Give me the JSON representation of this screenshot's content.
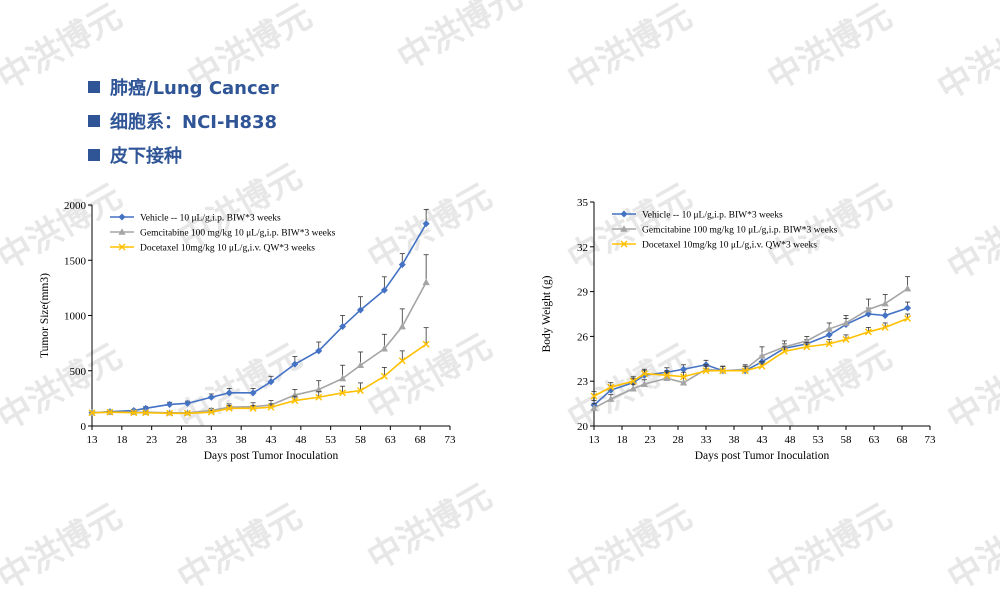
{
  "watermark": "中洪博元",
  "bullets": [
    "肺癌/Lung Cancer",
    "细胞系：NCI-H838",
    "皮下接种"
  ],
  "colors": {
    "vehicle": "#4472C4",
    "gemcitabine": "#A5A5A5",
    "docetaxel": "#FFC000",
    "bullet": "#2F5597"
  },
  "legend": {
    "vehicle": "Vehicle -- 10 μL/g,i.p. BIW*3 weeks",
    "gemcitabine": "Gemcitabine 100 mg/kg 10 μL/g,i.p. BIW*3 weeks",
    "docetaxel": "Docetaxel 10mg/kg 10 μL/g,i.v. QW*3 weeks"
  },
  "chart_data": [
    {
      "type": "line",
      "xlabel": "Days post Tumor Inoculation",
      "ylabel": "Tumor Size(mm3)",
      "xlim": [
        13,
        73
      ],
      "ylim": [
        0,
        2000
      ],
      "xticks": [
        13,
        18,
        23,
        28,
        33,
        38,
        43,
        48,
        53,
        58,
        63,
        68,
        73
      ],
      "yticks": [
        0,
        500,
        1000,
        1500,
        2000
      ],
      "legend_position": "top-left",
      "series": [
        {
          "key": "vehicle",
          "marker": "diamond",
          "x": [
            13,
            16,
            20,
            22,
            26,
            29,
            33,
            36,
            40,
            43,
            47,
            51,
            55,
            58,
            62,
            65,
            69
          ],
          "y": [
            120,
            130,
            140,
            160,
            195,
            205,
            260,
            300,
            300,
            400,
            560,
            680,
            900,
            1050,
            1230,
            1460,
            1830
          ],
          "err": [
            10,
            10,
            12,
            15,
            20,
            20,
            30,
            40,
            40,
            50,
            70,
            80,
            100,
            120,
            120,
            100,
            130
          ]
        },
        {
          "key": "gemcitabine",
          "marker": "triangle",
          "x": [
            13,
            16,
            20,
            22,
            26,
            29,
            33,
            36,
            40,
            43,
            47,
            51,
            55,
            58,
            62,
            65,
            69
          ],
          "y": [
            120,
            125,
            125,
            125,
            120,
            120,
            140,
            170,
            175,
            190,
            280,
            330,
            430,
            550,
            700,
            900,
            1300
          ],
          "err": [
            10,
            10,
            12,
            12,
            12,
            12,
            20,
            30,
            35,
            40,
            50,
            80,
            120,
            120,
            130,
            160,
            250
          ]
        },
        {
          "key": "docetaxel",
          "marker": "x",
          "x": [
            13,
            16,
            20,
            22,
            26,
            29,
            33,
            36,
            40,
            43,
            47,
            51,
            55,
            58,
            62,
            65,
            69
          ],
          "y": [
            120,
            125,
            120,
            120,
            115,
            115,
            125,
            160,
            160,
            170,
            230,
            260,
            300,
            320,
            450,
            590,
            740
          ],
          "err": [
            8,
            10,
            10,
            10,
            10,
            10,
            15,
            25,
            25,
            30,
            40,
            50,
            60,
            70,
            80,
            90,
            150
          ]
        }
      ]
    },
    {
      "type": "line",
      "xlabel": "Days post Tumor Inoculation",
      "ylabel": "Body Weight (g)",
      "xlim": [
        13,
        73
      ],
      "ylim": [
        20,
        35
      ],
      "xticks": [
        13,
        18,
        23,
        28,
        33,
        38,
        43,
        48,
        53,
        58,
        63,
        68,
        73
      ],
      "yticks": [
        20,
        23,
        26,
        29,
        32,
        35
      ],
      "legend_position": "top-left",
      "series": [
        {
          "key": "vehicle",
          "marker": "diamond",
          "x": [
            13,
            16,
            20,
            22,
            26,
            29,
            33,
            36,
            40,
            43,
            47,
            51,
            55,
            58,
            62,
            65,
            69
          ],
          "y": [
            21.4,
            22.4,
            22.9,
            23.4,
            23.6,
            23.8,
            24.1,
            23.7,
            23.7,
            24.3,
            25.2,
            25.5,
            26.1,
            26.8,
            27.5,
            27.4,
            27.9
          ],
          "err": [
            0.3,
            0.3,
            0.3,
            0.3,
            0.3,
            0.3,
            0.3,
            0.3,
            0.3,
            0.4,
            0.3,
            0.3,
            0.4,
            0.4,
            0.4,
            0.4,
            0.4
          ]
        },
        {
          "key": "gemcitabine",
          "marker": "triangle",
          "x": [
            13,
            16,
            20,
            22,
            26,
            29,
            33,
            36,
            40,
            43,
            47,
            51,
            55,
            58,
            62,
            65,
            69
          ],
          "y": [
            21.2,
            21.8,
            22.5,
            22.8,
            23.2,
            22.9,
            23.8,
            23.7,
            23.8,
            24.7,
            25.3,
            25.7,
            26.5,
            26.9,
            27.8,
            28.2,
            29.2
          ],
          "err": [
            0.3,
            0.3,
            0.3,
            0.3,
            0.4,
            0.4,
            0.3,
            0.3,
            0.3,
            0.6,
            0.4,
            0.3,
            0.4,
            0.5,
            0.7,
            0.6,
            0.8
          ]
        },
        {
          "key": "docetaxel",
          "marker": "x",
          "x": [
            13,
            16,
            20,
            22,
            26,
            29,
            33,
            36,
            40,
            43,
            47,
            51,
            55,
            58,
            62,
            65,
            69
          ],
          "y": [
            22.0,
            22.6,
            23.0,
            23.5,
            23.4,
            23.3,
            23.7,
            23.7,
            23.7,
            24.0,
            25.0,
            25.3,
            25.5,
            25.8,
            26.3,
            26.6,
            27.2
          ],
          "err": [
            0.3,
            0.3,
            0.3,
            0.3,
            0.3,
            0.3,
            0.3,
            0.3,
            0.3,
            0.3,
            0.3,
            0.3,
            0.3,
            0.3,
            0.3,
            0.3,
            0.3
          ]
        }
      ]
    }
  ]
}
